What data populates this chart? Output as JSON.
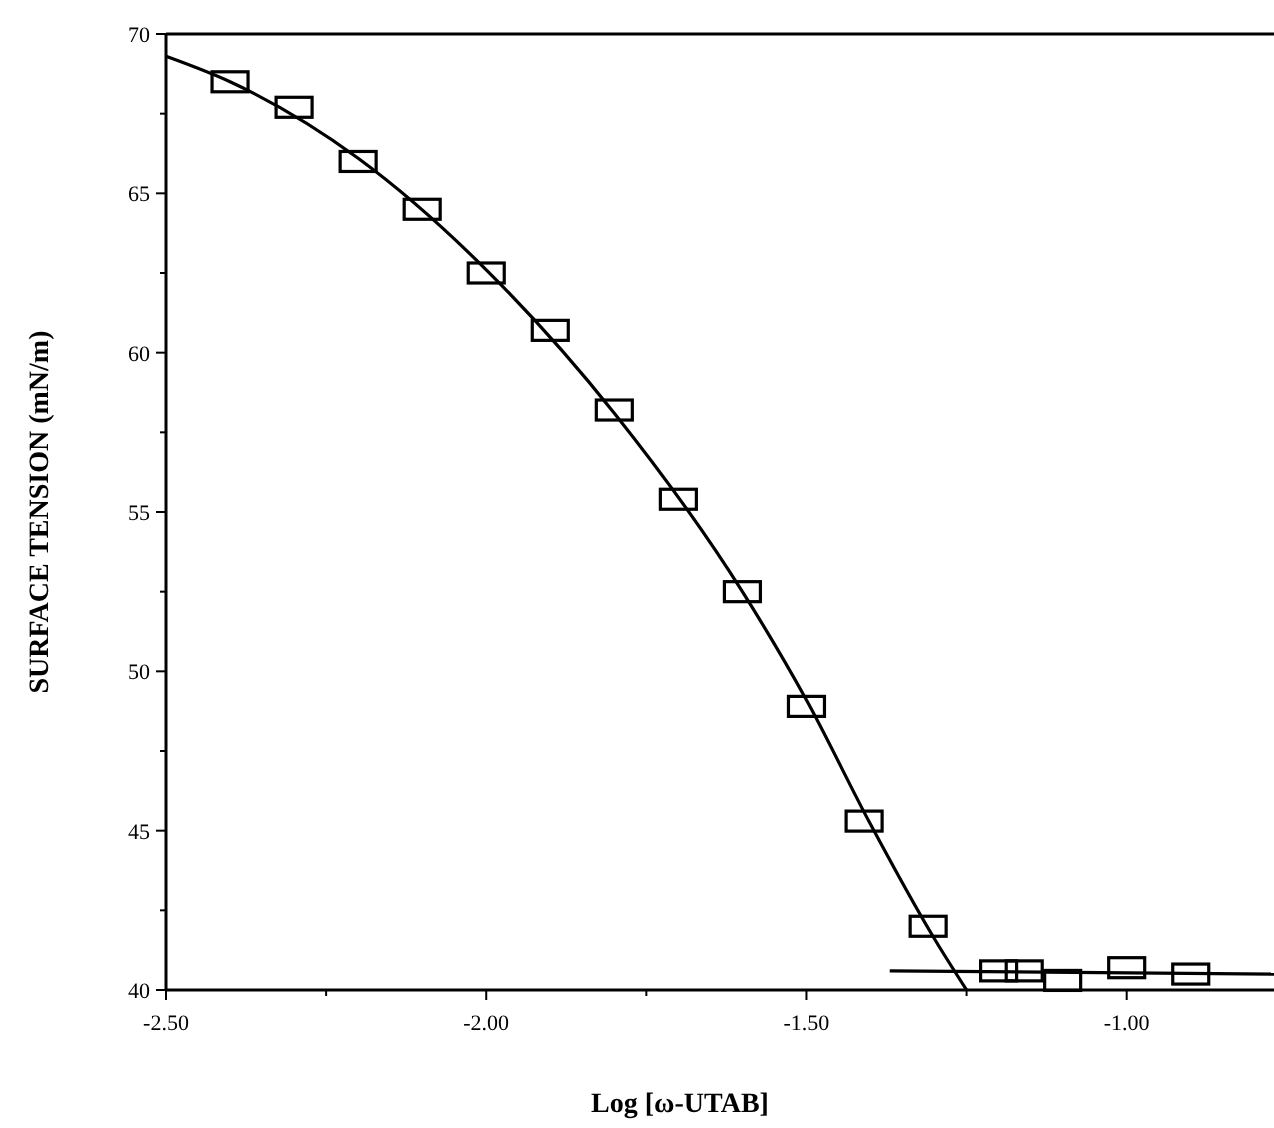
{
  "chart_data": {
    "type": "scatter",
    "xlabel": "Log [ω-UTAB]",
    "ylabel": "SURFACE TENSION (mN/m)",
    "xlim": [
      -2.5,
      -0.77
    ],
    "ylim": [
      40,
      70
    ],
    "xticks": [
      {
        "value": -2.5,
        "label": "-2.50"
      },
      {
        "value": -2.25,
        "label": null
      },
      {
        "value": -2.0,
        "label": "-2.00"
      },
      {
        "value": -1.75,
        "label": null
      },
      {
        "value": -1.5,
        "label": "-1.50"
      },
      {
        "value": -1.25,
        "label": null
      },
      {
        "value": -1.0,
        "label": "-1.00"
      }
    ],
    "yticks": [
      40,
      {
        "value": 42.5,
        "label": null
      },
      45,
      {
        "value": 47.5,
        "label": null
      },
      50,
      {
        "value": 52.5,
        "label": null
      },
      55,
      {
        "value": 57.5,
        "label": null
      },
      60,
      {
        "value": 62.5,
        "label": null
      },
      65,
      {
        "value": 67.5,
        "label": null
      },
      70
    ],
    "grid": false,
    "series": [
      {
        "marker": "square",
        "color": "#000000",
        "x": [
          -2.4,
          -2.3,
          -2.2,
          -2.1,
          -2.0,
          -1.9,
          -1.8,
          -1.7,
          -1.6,
          -1.5,
          -1.41,
          -1.31,
          -1.2,
          -1.16,
          -1.1,
          -1.0,
          -0.9
        ],
        "values": [
          68.5,
          67.7,
          66.0,
          64.5,
          62.5,
          60.7,
          58.2,
          55.4,
          52.5,
          48.9,
          45.3,
          42.0,
          40.6,
          40.6,
          40.3,
          40.7,
          40.5
        ]
      },
      {
        "type": "line",
        "marker": "none",
        "line_style": "solid",
        "color": "#000000",
        "x": [
          -2.5,
          -2.4,
          -2.2,
          -2.0,
          -1.8,
          -1.6,
          -1.5,
          -1.4,
          -1.3,
          -1.25
        ],
        "values": [
          69.3,
          68.5,
          66.1,
          62.6,
          58.1,
          52.5,
          49.1,
          45.2,
          41.6,
          40.0
        ]
      },
      {
        "type": "line",
        "marker": "none",
        "line_style": "solid",
        "color": "#000000",
        "x": [
          -1.37,
          -0.77
        ],
        "values": [
          40.6,
          40.5
        ]
      }
    ]
  }
}
